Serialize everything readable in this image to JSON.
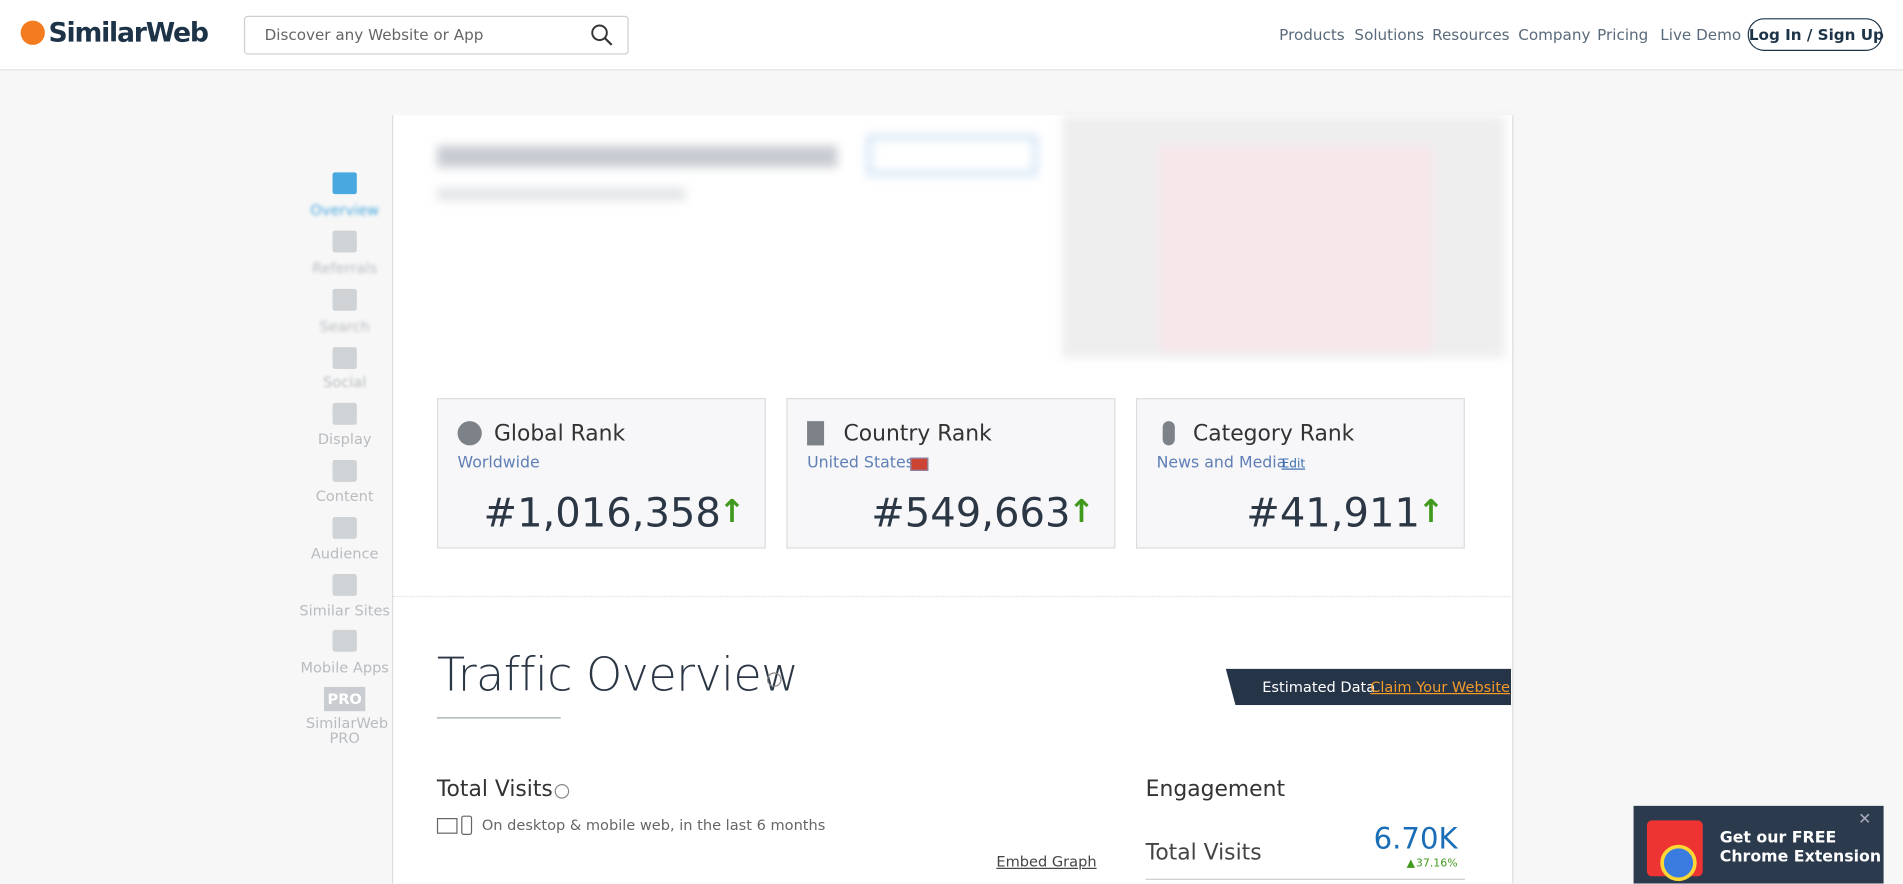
{
  "header": {
    "logo": "SimilarWeb",
    "search_placeholder": "Discover any Website or App",
    "nav": [
      "Products",
      "Solutions",
      "Resources",
      "Company",
      "Pricing",
      "Live Demo"
    ],
    "login": "Log In / Sign Up"
  },
  "sidebar": [
    "Overview",
    "Referrals",
    "Search",
    "Social",
    "Display",
    "Content",
    "Audience",
    "Similar Sites",
    "Mobile Apps",
    "SimilarWeb PRO"
  ],
  "sidebar_badge": "PRO",
  "ranks": [
    {
      "title": "Global Rank",
      "subtitle": "Worldwide",
      "value": "#1,016,358"
    },
    {
      "title": "Country Rank",
      "subtitle": "United States",
      "value": "#549,663"
    },
    {
      "title": "Category Rank",
      "subtitle": "News and Media",
      "edit": "Edit",
      "value": "#41,911"
    }
  ],
  "traffic": {
    "title": "Traffic Overview",
    "estimated": "Estimated Data",
    "claim": "Claim Your Website",
    "total_visits_title": "Total Visits",
    "total_visits_sub": "On desktop & mobile web, in the last 6 months",
    "embed": "Embed Graph"
  },
  "engagement": {
    "title": "Engagement",
    "metric": "Total Visits",
    "value": "6.70K",
    "change": "37.16%"
  },
  "extension": {
    "line1": "Get our FREE",
    "line2": "Chrome Extension"
  }
}
